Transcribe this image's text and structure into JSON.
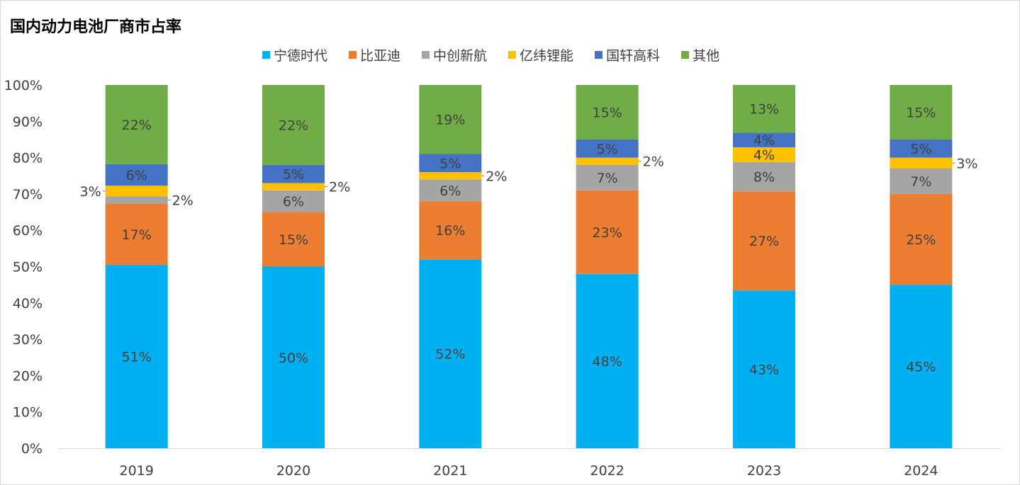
{
  "chart_data": {
    "type": "bar",
    "stacked": true,
    "percent_stacked": true,
    "title": "国内动力电池厂商市占率",
    "categories": [
      "2019",
      "2020",
      "2021",
      "2022",
      "2023",
      "2024"
    ],
    "series": [
      {
        "name": "宁德时代",
        "color": "#00B0F0",
        "values": [
          51,
          50,
          52,
          48,
          43,
          45
        ]
      },
      {
        "name": "比亚迪",
        "color": "#ED7D31",
        "values": [
          17,
          15,
          16,
          23,
          27,
          25
        ]
      },
      {
        "name": "中创新航",
        "color": "#A5A5A5",
        "values": [
          2,
          6,
          6,
          7,
          8,
          7
        ]
      },
      {
        "name": "亿纬锂能",
        "color": "#FFC000",
        "values": [
          3,
          2,
          2,
          2,
          4,
          3
        ]
      },
      {
        "name": "国轩高科",
        "color": "#4472C4",
        "values": [
          6,
          5,
          5,
          5,
          4,
          5
        ]
      },
      {
        "name": "其他",
        "color": "#70AD47",
        "values": [
          22,
          22,
          19,
          15,
          13,
          15
        ]
      }
    ],
    "yticks": [
      "0%",
      "10%",
      "20%",
      "30%",
      "40%",
      "50%",
      "60%",
      "70%",
      "80%",
      "90%",
      "100%"
    ],
    "ylim": [
      0,
      100
    ],
    "grid": false,
    "legend_position": "top",
    "data_label_suffix": "%"
  }
}
